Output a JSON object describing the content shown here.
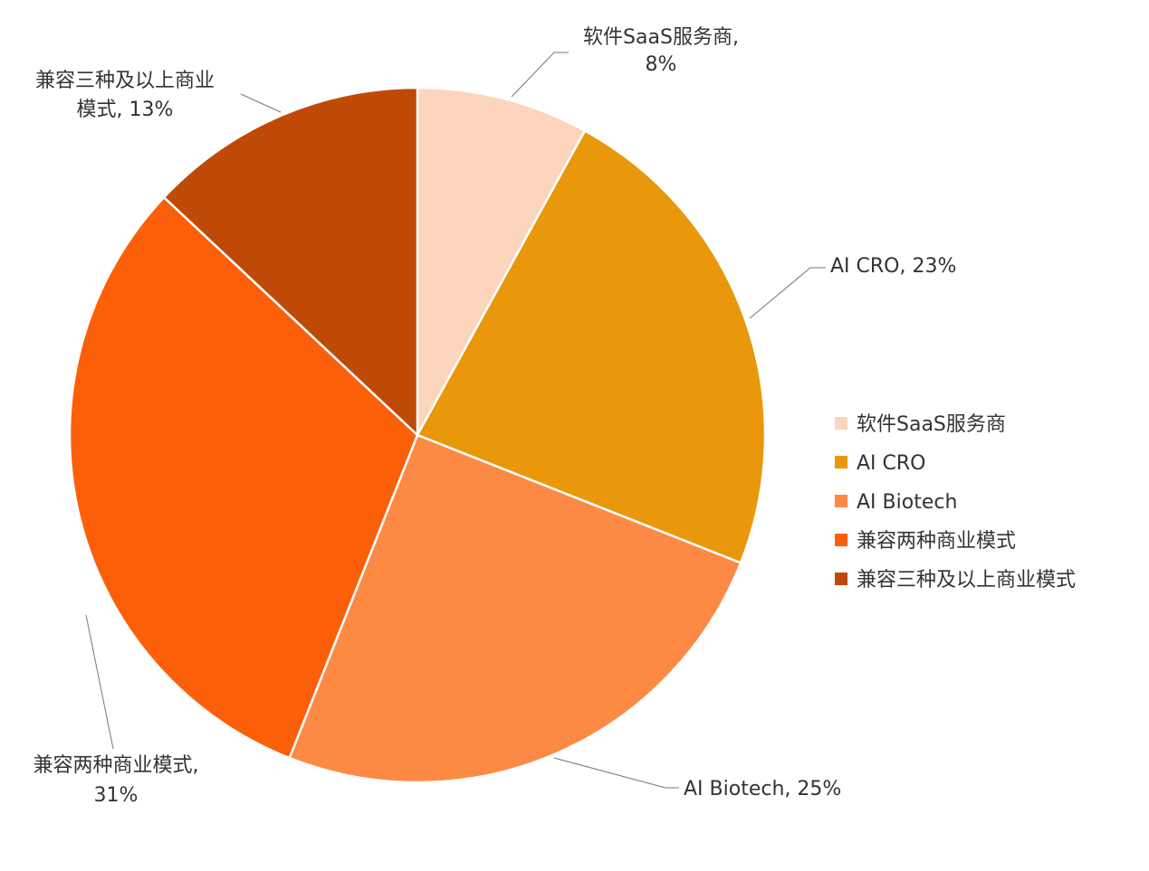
{
  "chart_data": {
    "type": "pie",
    "start_angle": "12 o'clock",
    "direction": "clockwise",
    "legend_position": "right",
    "slices": [
      {
        "label": "软件SaaS服务商",
        "value": 8,
        "color": "#FCD5BC",
        "data_label": [
          "软件SaaS服务商,",
          "8%"
        ]
      },
      {
        "label": "AI CRO",
        "value": 23,
        "color": "#E8980A",
        "data_label": [
          "AI CRO, 23%"
        ]
      },
      {
        "label": "AI Biotech",
        "value": 25,
        "color": "#FC8A45",
        "data_label": [
          "AI Biotech, 25%"
        ]
      },
      {
        "label": "兼容两种商业模式",
        "value": 31,
        "color": "#FC5F0A",
        "data_label": [
          "兼容两种商业模式,",
          "31%"
        ]
      },
      {
        "label": "兼容三种及以上商业模式",
        "value": 13,
        "color": "#BF4A08",
        "data_label": [
          "兼容三种及以上商业",
          "模式, 13%"
        ]
      }
    ]
  }
}
